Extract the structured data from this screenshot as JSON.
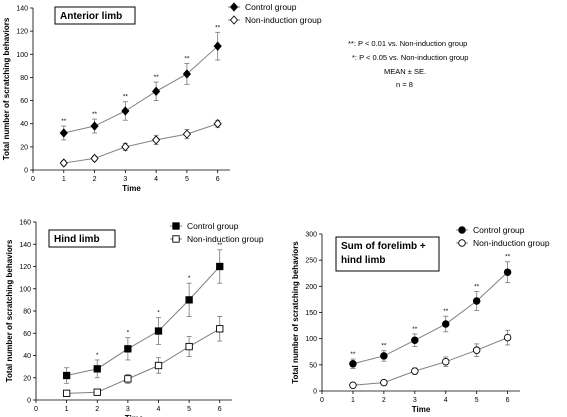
{
  "chart_data": [
    {
      "type": "line",
      "title": "Anterior limb",
      "xlabel": "Time",
      "ylabel": "Total number of scratching behaviors",
      "x": [
        1,
        2,
        3,
        4,
        5,
        6
      ],
      "xticks": [
        "0",
        "1",
        "2",
        "3",
        "4",
        "5",
        "6"
      ],
      "yticks": [
        "0",
        "20",
        "40",
        "60",
        "80",
        "100",
        "120",
        "140"
      ],
      "xlim": [
        0,
        6.4
      ],
      "ylim": [
        0,
        140
      ],
      "legend_position": "top-center",
      "series": [
        {
          "name": "Control group",
          "marker": "filled-diamond",
          "values": [
            32,
            38,
            51,
            68,
            83,
            107
          ],
          "errors": [
            6,
            6,
            8,
            8,
            9,
            12
          ],
          "significance": [
            "**",
            "**",
            "**",
            "**",
            "**",
            "**"
          ]
        },
        {
          "name": "Non-induction group",
          "marker": "open-diamond",
          "values": [
            6,
            10,
            20,
            26,
            31,
            40
          ],
          "errors": [
            2,
            2,
            3,
            4,
            4,
            3
          ]
        }
      ],
      "notes": [
        "**: P < 0.01 vs. Non-induction group",
        "*: P < 0.05 vs. Non-induction group",
        "MEAN ± SE.",
        "n = 8"
      ]
    },
    {
      "type": "line",
      "title": "Hind limb",
      "xlabel": "Time",
      "ylabel": "Total number of scratching behaviors",
      "x": [
        1,
        2,
        3,
        4,
        5,
        6
      ],
      "xticks": [
        "0",
        "1",
        "2",
        "3",
        "4",
        "5",
        "6"
      ],
      "yticks": [
        "0",
        "20",
        "40",
        "60",
        "80",
        "100",
        "120",
        "140",
        "160"
      ],
      "xlim": [
        0,
        6.4
      ],
      "ylim": [
        0,
        160
      ],
      "legend_position": "top-right",
      "series": [
        {
          "name": "Control group",
          "marker": "filled-square",
          "values": [
            22,
            28,
            46,
            62,
            90,
            120
          ],
          "errors": [
            7,
            8,
            10,
            12,
            15,
            15
          ],
          "significance": [
            "",
            "*",
            "*",
            "*",
            "*",
            "**"
          ]
        },
        {
          "name": "Non-induction group",
          "marker": "open-square",
          "values": [
            6,
            7,
            19,
            31,
            48,
            64
          ],
          "errors": [
            2,
            2,
            4,
            7,
            9,
            11
          ]
        }
      ]
    },
    {
      "type": "line",
      "title": "Sum of forelimb +\nhind limb",
      "xlabel": "Time",
      "ylabel": "Total number of scratching behaviors",
      "x": [
        1,
        2,
        3,
        4,
        5,
        6
      ],
      "xticks": [
        "0",
        "1",
        "2",
        "3",
        "4",
        "5",
        "6"
      ],
      "yticks": [
        "0",
        "50",
        "100",
        "150",
        "200",
        "250",
        "300"
      ],
      "xlim": [
        0,
        6.4
      ],
      "ylim": [
        0,
        300
      ],
      "legend_position": "top-right",
      "series": [
        {
          "name": "Control group",
          "marker": "filled-circle",
          "values": [
            52,
            67,
            97,
            128,
            172,
            227
          ],
          "errors": [
            9,
            10,
            12,
            15,
            18,
            20
          ],
          "significance": [
            "**",
            "**",
            "**",
            "**",
            "**",
            "**"
          ]
        },
        {
          "name": "Non-induction group",
          "marker": "open-circle",
          "values": [
            11,
            16,
            38,
            56,
            78,
            102
          ],
          "errors": [
            3,
            4,
            6,
            9,
            12,
            14
          ]
        }
      ]
    }
  ]
}
